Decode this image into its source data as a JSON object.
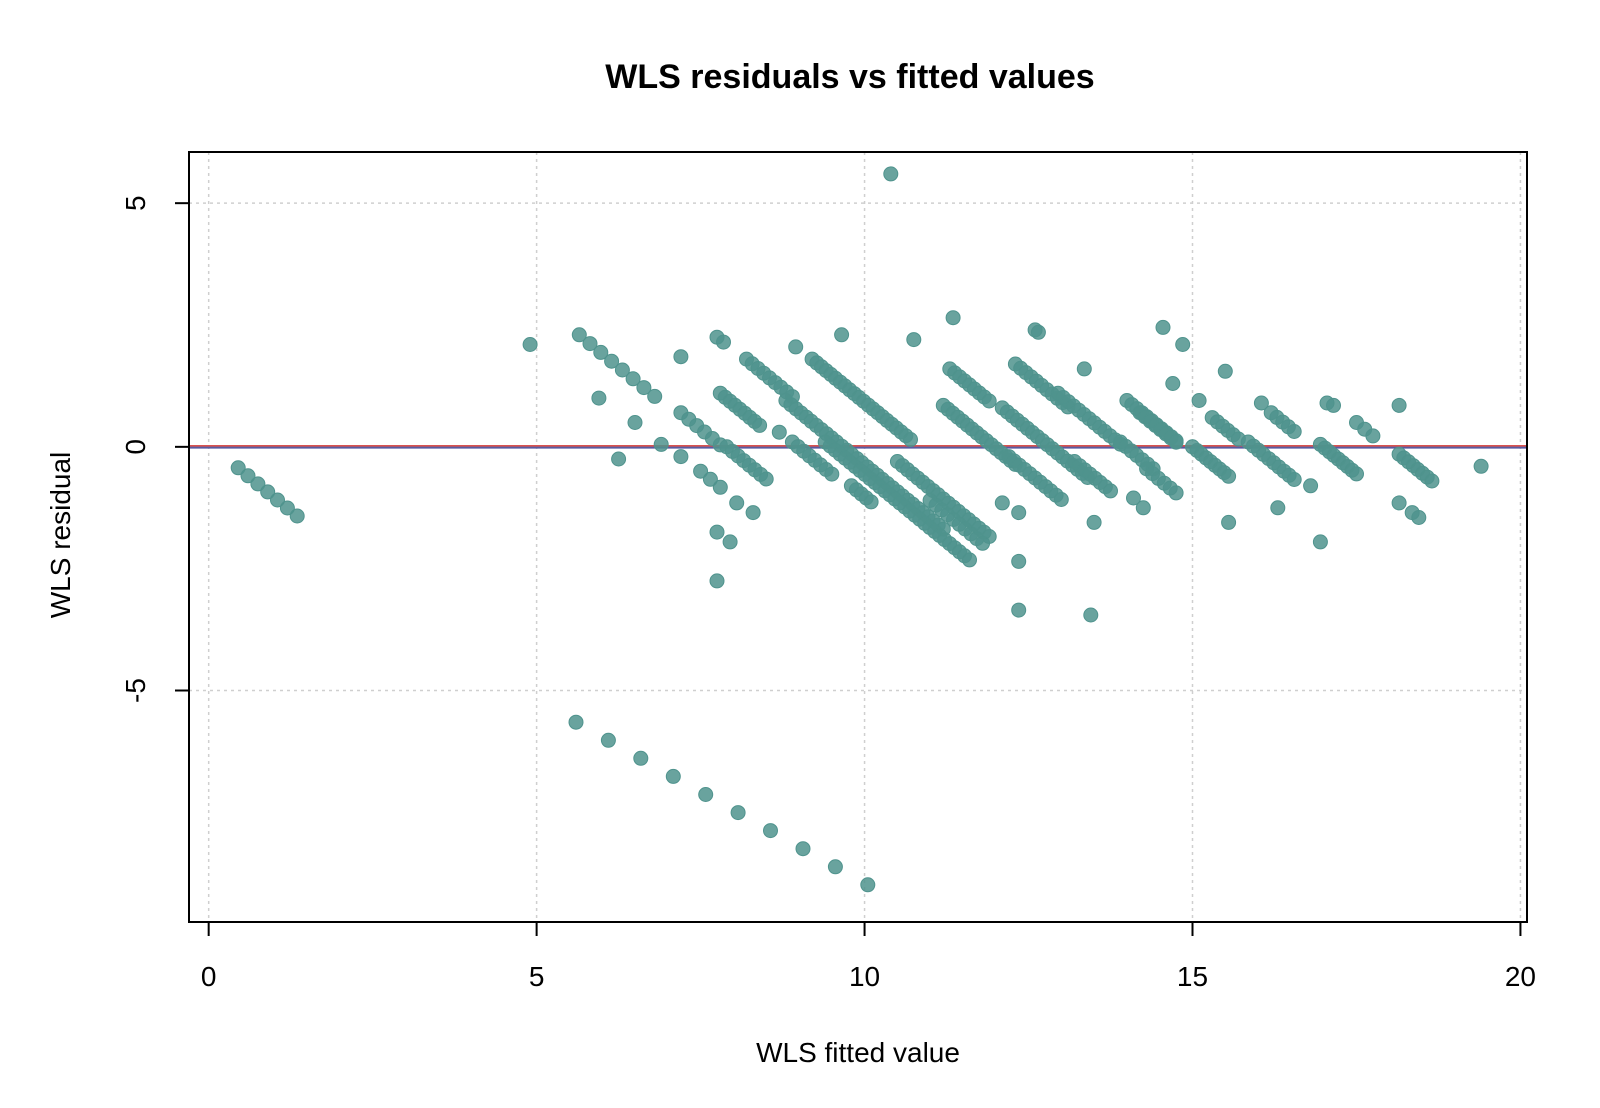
{
  "chart_data": {
    "type": "scatter",
    "title": "WLS residuals vs fitted values",
    "xlabel": "WLS fitted value",
    "ylabel": "WLS residual",
    "xlim": [
      -0.3,
      20.1
    ],
    "ylim": [
      -9.75,
      6.05
    ],
    "x_ticks": [
      0,
      5,
      10,
      15,
      20
    ],
    "y_ticks": [
      -5,
      0,
      5
    ],
    "x_tick_labels": [
      "0",
      "5",
      "10",
      "15",
      "20"
    ],
    "y_tick_labels": [
      "-5",
      "0",
      "5"
    ],
    "grid": true,
    "point_color": "#4f938d",
    "reference_line": {
      "y": 0,
      "colors": [
        "#d9534f",
        "#5a5aa0"
      ]
    },
    "bands": [
      {
        "x_start": 0.45,
        "x_end": 1.35,
        "y_start": -0.43,
        "n": 7
      },
      {
        "x_start": 5.65,
        "x_end": 6.8,
        "y_start": 2.3,
        "n": 8
      },
      {
        "x_start": 7.2,
        "x_end": 7.8,
        "y_start": 0.7,
        "n": 6
      },
      {
        "x_start": 7.5,
        "x_end": 7.8,
        "y_start": -0.5,
        "n": 3
      },
      {
        "x_start": 7.8,
        "x_end": 8.4,
        "y_start": 1.1,
        "n": 9
      },
      {
        "x_start": 7.9,
        "x_end": 8.5,
        "y_start": 0.0,
        "n": 8
      },
      {
        "x_start": 8.2,
        "x_end": 8.9,
        "y_start": 1.8,
        "n": 9
      },
      {
        "x_start": 8.9,
        "x_end": 9.5,
        "y_start": 0.1,
        "n": 8
      },
      {
        "x_start": 9.2,
        "x_end": 10.7,
        "y_start": 1.8,
        "n": 22
      },
      {
        "x_start": 8.8,
        "x_end": 11.2,
        "y_start": 0.95,
        "n": 32
      },
      {
        "x_start": 9.4,
        "x_end": 11.6,
        "y_start": 0.1,
        "n": 30
      },
      {
        "x_start": 9.8,
        "x_end": 10.1,
        "y_start": -0.8,
        "n": 5
      },
      {
        "x_start": 11.3,
        "x_end": 11.9,
        "y_start": 1.6,
        "n": 9
      },
      {
        "x_start": 11.2,
        "x_end": 12.3,
        "y_start": 0.85,
        "n": 16
      },
      {
        "x_start": 10.5,
        "x_end": 11.9,
        "y_start": -0.3,
        "n": 19
      },
      {
        "x_start": 11.0,
        "x_end": 11.8,
        "y_start": -1.1,
        "n": 10
      },
      {
        "x_start": 12.3,
        "x_end": 13.1,
        "y_start": 1.7,
        "n": 11
      },
      {
        "x_start": 12.1,
        "x_end": 13.4,
        "y_start": 0.8,
        "n": 18
      },
      {
        "x_start": 12.2,
        "x_end": 13.0,
        "y_start": -0.2,
        "n": 11
      },
      {
        "x_start": 12.95,
        "x_end": 13.9,
        "y_start": 1.1,
        "n": 13
      },
      {
        "x_start": 13.2,
        "x_end": 13.75,
        "y_start": -0.3,
        "n": 8
      },
      {
        "x_start": 14.0,
        "x_end": 14.75,
        "y_start": 0.95,
        "n": 11
      },
      {
        "x_start": 14.2,
        "x_end": 14.75,
        "y_start": 0.7,
        "n": 8
      },
      {
        "x_start": 13.9,
        "x_end": 14.4,
        "y_start": 0.1,
        "n": 7
      },
      {
        "x_start": 14.3,
        "x_end": 14.75,
        "y_start": -0.45,
        "n": 6
      },
      {
        "x_start": 15.0,
        "x_end": 15.55,
        "y_start": 0.0,
        "n": 9
      },
      {
        "x_start": 15.3,
        "x_end": 15.7,
        "y_start": 0.6,
        "n": 6
      },
      {
        "x_start": 15.85,
        "x_end": 16.55,
        "y_start": 0.1,
        "n": 10
      },
      {
        "x_start": 16.2,
        "x_end": 16.55,
        "y_start": 0.7,
        "n": 5
      },
      {
        "x_start": 16.95,
        "x_end": 17.5,
        "y_start": 0.05,
        "n": 9
      },
      {
        "x_start": 17.5,
        "x_end": 17.75,
        "y_start": 0.5,
        "n": 3
      },
      {
        "x_start": 18.15,
        "x_end": 18.65,
        "y_start": -0.15,
        "n": 8
      },
      {
        "x_start": 5.6,
        "x_end": 10.05,
        "y_start": -5.65,
        "n": 10
      }
    ],
    "points": [
      [
        4.9,
        2.1
      ],
      [
        5.95,
        1.0
      ],
      [
        6.25,
        -0.25
      ],
      [
        6.5,
        0.5
      ],
      [
        6.9,
        0.05
      ],
      [
        7.2,
        1.85
      ],
      [
        7.2,
        -0.2
      ],
      [
        7.75,
        2.25
      ],
      [
        7.85,
        2.15
      ],
      [
        7.75,
        -1.75
      ],
      [
        7.95,
        -1.95
      ],
      [
        7.75,
        -2.75
      ],
      [
        8.05,
        -1.15
      ],
      [
        8.3,
        -1.35
      ],
      [
        8.7,
        0.3
      ],
      [
        8.95,
        2.05
      ],
      [
        9.65,
        2.3
      ],
      [
        10.4,
        5.6
      ],
      [
        10.75,
        2.2
      ],
      [
        11.35,
        2.65
      ],
      [
        12.1,
        -1.15
      ],
      [
        12.35,
        -1.35
      ],
      [
        12.35,
        -2.35
      ],
      [
        12.35,
        -3.35
      ],
      [
        12.6,
        2.4
      ],
      [
        12.65,
        2.35
      ],
      [
        13.35,
        1.6
      ],
      [
        13.5,
        -1.55
      ],
      [
        13.45,
        -3.45
      ],
      [
        14.1,
        -1.05
      ],
      [
        14.25,
        -1.25
      ],
      [
        14.55,
        2.45
      ],
      [
        14.7,
        1.3
      ],
      [
        14.85,
        2.1
      ],
      [
        15.1,
        0.95
      ],
      [
        15.5,
        1.55
      ],
      [
        15.55,
        -1.55
      ],
      [
        16.05,
        0.9
      ],
      [
        16.3,
        -1.25
      ],
      [
        16.8,
        -0.8
      ],
      [
        16.95,
        -1.95
      ],
      [
        17.05,
        0.9
      ],
      [
        17.15,
        0.85
      ],
      [
        18.15,
        0.85
      ],
      [
        18.15,
        -1.15
      ],
      [
        18.35,
        -1.35
      ],
      [
        18.45,
        -1.45
      ],
      [
        19.4,
        -0.4
      ]
    ]
  }
}
